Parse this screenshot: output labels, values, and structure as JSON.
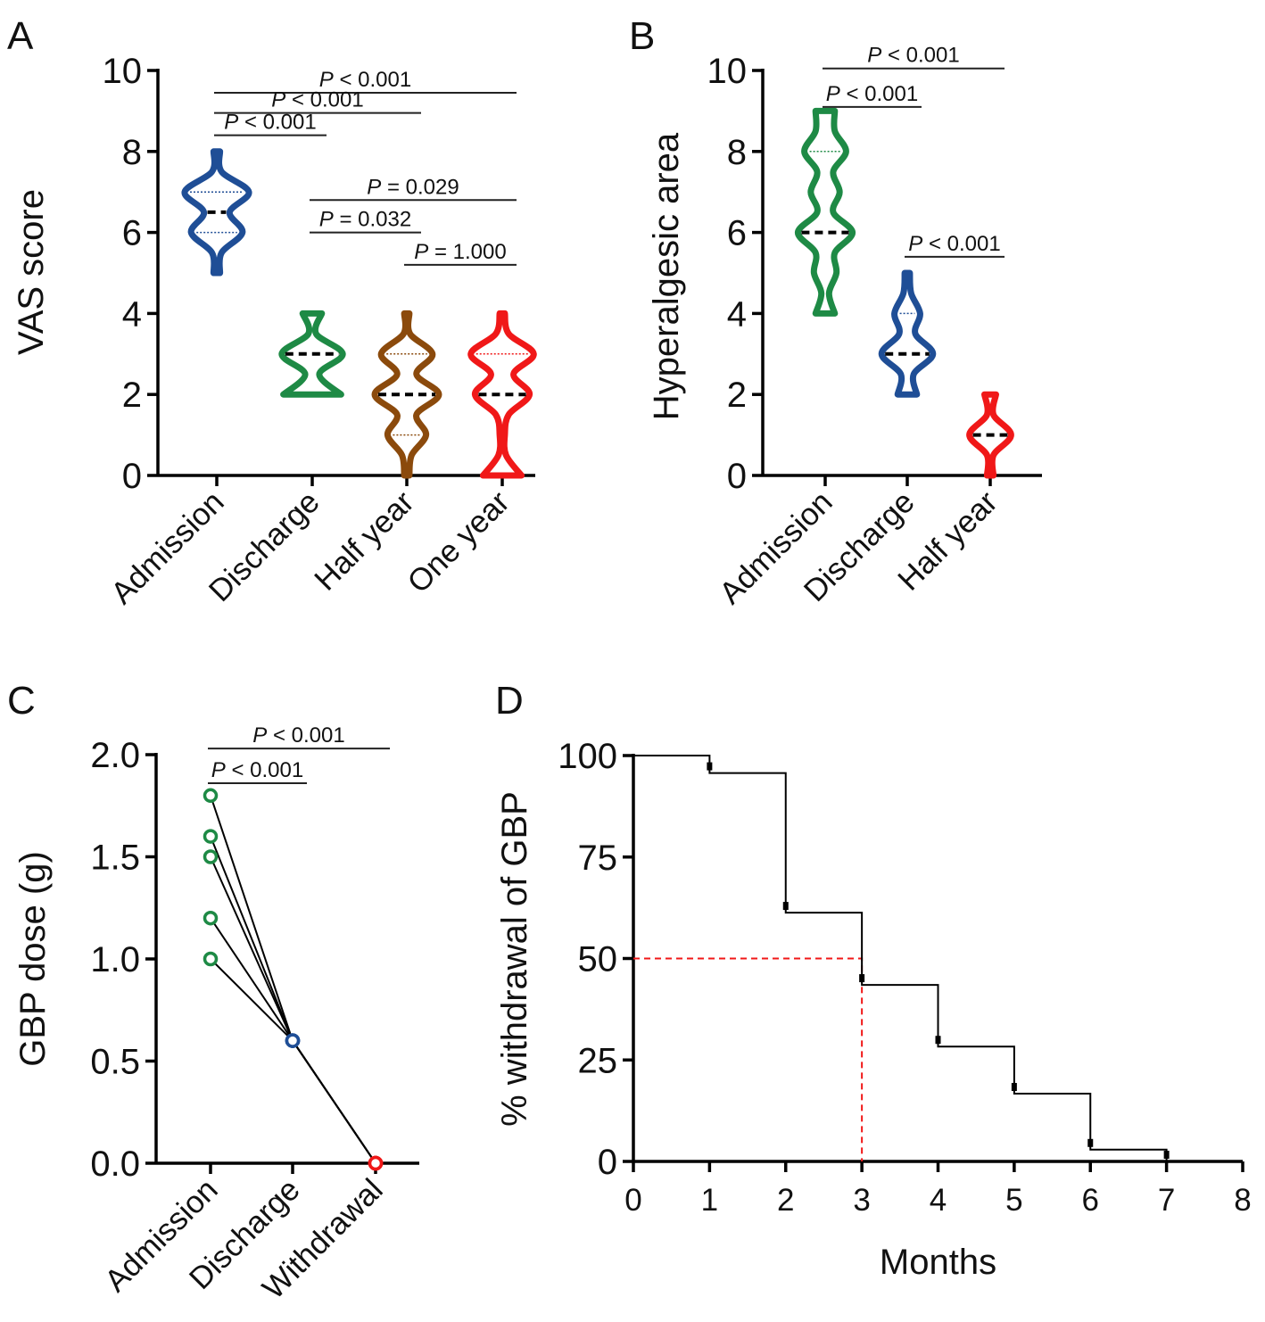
{
  "chart_data": [
    {
      "panel": "A",
      "type": "violin",
      "ylabel": "VAS score",
      "ylim": [
        0,
        10
      ],
      "yticks": [
        0,
        2,
        4,
        6,
        8,
        10
      ],
      "categories": [
        "Admission",
        "Discharge",
        "Half year",
        "One year"
      ],
      "groups": [
        {
          "name": "Admission",
          "color": "#1f4e96",
          "min": 5,
          "max": 8,
          "median": 6.5,
          "quartiles": [
            6,
            7
          ],
          "density": [
            [
              5,
              0.1
            ],
            [
              5.5,
              0.15
            ],
            [
              6,
              0.8
            ],
            [
              6.5,
              0.4
            ],
            [
              7,
              1.0
            ],
            [
              7.5,
              0.15
            ],
            [
              8,
              0.1
            ]
          ]
        },
        {
          "name": "Discharge",
          "color": "#1e8a45",
          "min": 2,
          "max": 4,
          "median": 3,
          "quartiles": [
            3,
            3
          ],
          "density": [
            [
              2,
              0.9
            ],
            [
              2.5,
              0.22
            ],
            [
              3,
              0.95
            ],
            [
              3.5,
              0.12
            ],
            [
              4,
              0.3
            ]
          ]
        },
        {
          "name": "Half year",
          "color": "#8b4a0c",
          "min": 0,
          "max": 4,
          "median": 2,
          "quartiles": [
            1,
            3
          ],
          "density": [
            [
              0,
              0.08
            ],
            [
              0.5,
              0.15
            ],
            [
              1,
              0.6
            ],
            [
              1.5,
              0.3
            ],
            [
              2,
              1.0
            ],
            [
              2.5,
              0.3
            ],
            [
              3,
              0.8
            ],
            [
              3.5,
              0.1
            ],
            [
              4,
              0.08
            ]
          ]
        },
        {
          "name": "One year",
          "color": "#f01818",
          "min": 0,
          "max": 4,
          "median": 2,
          "quartiles": [
            0,
            3
          ],
          "density": [
            [
              0,
              0.6
            ],
            [
              0.5,
              0.12
            ],
            [
              1,
              0.08
            ],
            [
              1.5,
              0.2
            ],
            [
              2,
              0.85
            ],
            [
              2.5,
              0.35
            ],
            [
              3,
              0.98
            ],
            [
              3.5,
              0.2
            ],
            [
              4,
              0.08
            ]
          ]
        }
      ],
      "comparisons": [
        {
          "from": 0,
          "to": 3,
          "label": "P < 0.001",
          "y": 9.45
        },
        {
          "from": 0,
          "to": 2,
          "label": "P < 0.001",
          "y": 8.95
        },
        {
          "from": 0,
          "to": 1,
          "label": "P < 0.001",
          "y": 8.4
        },
        {
          "from": 1,
          "to": 3,
          "label": "P = 0.029",
          "y": 6.8
        },
        {
          "from": 1,
          "to": 2,
          "label": "P = 0.032",
          "y": 6.0
        },
        {
          "from": 2,
          "to": 3,
          "label": "P = 1.000",
          "y": 5.2
        }
      ]
    },
    {
      "panel": "B",
      "type": "violin",
      "ylabel": "Hyperalgesic area",
      "ylim": [
        0,
        10
      ],
      "yticks": [
        0,
        2,
        4,
        6,
        8,
        10
      ],
      "categories": [
        "Admission",
        "Discharge",
        "Half year"
      ],
      "groups": [
        {
          "name": "Admission",
          "color": "#1e8a45",
          "min": 4,
          "max": 9,
          "median": 6,
          "quartiles": [
            6,
            8
          ],
          "density": [
            [
              4,
              0.3
            ],
            [
              4.5,
              0.12
            ],
            [
              5,
              0.35
            ],
            [
              5.5,
              0.3
            ],
            [
              6,
              0.85
            ],
            [
              6.5,
              0.25
            ],
            [
              7,
              0.45
            ],
            [
              7.5,
              0.25
            ],
            [
              8,
              0.65
            ],
            [
              8.5,
              0.3
            ],
            [
              9,
              0.3
            ]
          ]
        },
        {
          "name": "Discharge",
          "color": "#1f4e96",
          "min": 2,
          "max": 5,
          "median": 3,
          "quartiles": [
            3,
            4
          ],
          "density": [
            [
              2,
              0.3
            ],
            [
              2.5,
              0.2
            ],
            [
              3,
              0.8
            ],
            [
              3.5,
              0.25
            ],
            [
              4,
              0.4
            ],
            [
              4.5,
              0.12
            ],
            [
              5,
              0.08
            ]
          ]
        },
        {
          "name": "Half year",
          "color": "#f01818",
          "min": 0,
          "max": 2,
          "median": 1,
          "quartiles": [
            1,
            1
          ],
          "density": [
            [
              0,
              0.1
            ],
            [
              0.5,
              0.1
            ],
            [
              1,
              0.65
            ],
            [
              1.5,
              0.1
            ],
            [
              2,
              0.18
            ]
          ]
        }
      ],
      "comparisons": [
        {
          "from": 0,
          "to": 2,
          "label": "P < 0.001",
          "y": 10.05
        },
        {
          "from": 0,
          "to": 1,
          "label": "P < 0.001",
          "y": 9.1
        },
        {
          "from": 1,
          "to": 2,
          "label": "P < 0.001",
          "y": 5.4
        }
      ]
    },
    {
      "panel": "C",
      "type": "line",
      "ylabel": "GBP dose (g)",
      "ylim": [
        0,
        2.0
      ],
      "yticks": [
        "0.0",
        "0.5",
        "1.0",
        "1.5",
        "2.0"
      ],
      "categories": [
        "Admission",
        "Discharge",
        "Withdrawal"
      ],
      "colors": [
        "#1e8a45",
        "#1f4e96",
        "#f01818"
      ],
      "series": [
        {
          "values": [
            1.8,
            0.6,
            0
          ]
        },
        {
          "values": [
            1.6,
            0.6,
            0
          ]
        },
        {
          "values": [
            1.5,
            0.6,
            0
          ]
        },
        {
          "values": [
            1.2,
            0.6,
            0
          ]
        },
        {
          "values": [
            1.0,
            0.6,
            0
          ]
        }
      ],
      "comparisons": [
        {
          "from": 0,
          "to": 2,
          "label": "P < 0.001",
          "y": 2.03
        },
        {
          "from": 0,
          "to": 1,
          "label": "P < 0.001",
          "y": 1.86
        }
      ]
    },
    {
      "panel": "D",
      "type": "line",
      "subtype": "kaplan-meier step",
      "xlabel": "Months",
      "ylabel": "% withdrawal of GBP",
      "xlim": [
        0,
        8
      ],
      "ylim": [
        0,
        100
      ],
      "xticks": [
        0,
        1,
        2,
        3,
        4,
        5,
        6,
        7,
        8
      ],
      "yticks": [
        0,
        25,
        50,
        75,
        100
      ],
      "x": [
        0,
        1,
        2,
        3,
        4,
        5,
        6,
        7
      ],
      "y": [
        100,
        95.7,
        61.3,
        43.5,
        28.3,
        16.7,
        2.9,
        0
      ],
      "median_line": {
        "x": 3,
        "y": 50,
        "color": "#f01818"
      }
    }
  ]
}
